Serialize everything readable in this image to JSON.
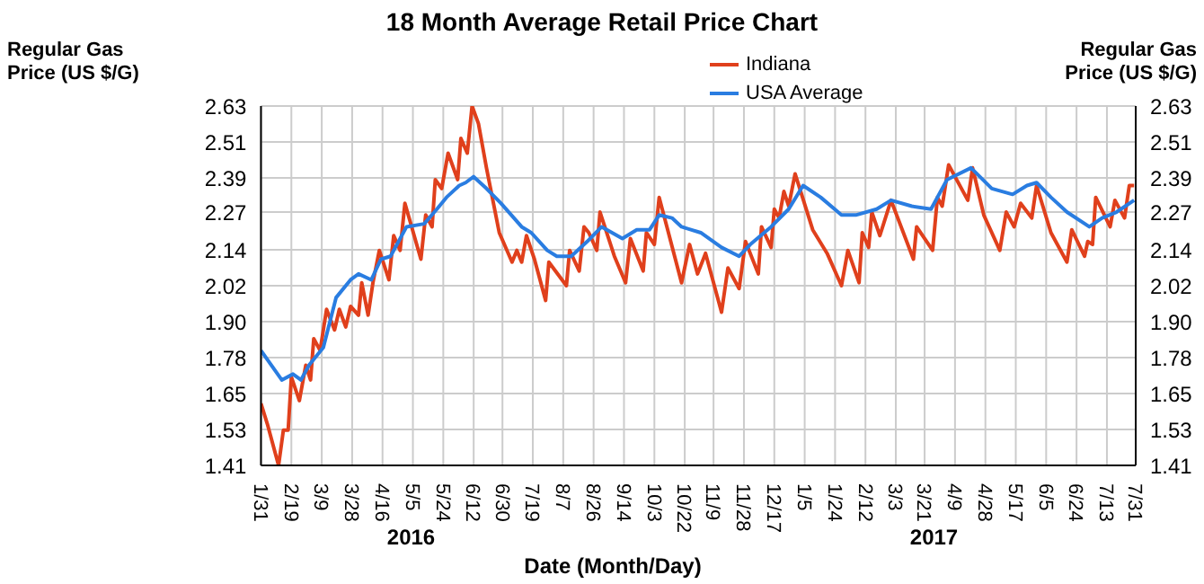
{
  "chart_data": {
    "type": "line",
    "title": "18 Month Average Retail Price Chart",
    "xlabel": "Date (Month/Day)",
    "ylabel": "Regular Gas Price (US $/G)",
    "y2label": "Regular Gas Price (US $/G)",
    "annotations": [
      "2016",
      "2017"
    ],
    "series": [
      {
        "name": "Indiana",
        "color": "#e0401c",
        "x": [
          "2016-01-31",
          "2016-02-04",
          "2016-02-11",
          "2016-02-14",
          "2016-02-17",
          "2016-02-19",
          "2016-02-24",
          "2016-02-28",
          "2016-03-02",
          "2016-03-04",
          "2016-03-08",
          "2016-03-12",
          "2016-03-17",
          "2016-03-20",
          "2016-03-24",
          "2016-03-27",
          "2016-04-01",
          "2016-04-03",
          "2016-04-07",
          "2016-04-10",
          "2016-04-14",
          "2016-04-20",
          "2016-04-23",
          "2016-04-27",
          "2016-04-30",
          "2016-05-10",
          "2016-05-13",
          "2016-05-17",
          "2016-05-19",
          "2016-05-23",
          "2016-05-27",
          "2016-06-02",
          "2016-06-04",
          "2016-06-08",
          "2016-06-11",
          "2016-06-15",
          "2016-06-20",
          "2016-06-28",
          "2016-07-06",
          "2016-07-09",
          "2016-07-12",
          "2016-07-15",
          "2016-07-20",
          "2016-07-27",
          "2016-07-29",
          "2016-08-09",
          "2016-08-11",
          "2016-08-17",
          "2016-08-20",
          "2016-08-23",
          "2016-08-28",
          "2016-08-30",
          "2016-09-08",
          "2016-09-15",
          "2016-09-18",
          "2016-09-26",
          "2016-09-28",
          "2016-10-03",
          "2016-10-06",
          "2016-10-20",
          "2016-10-25",
          "2016-10-30",
          "2016-11-04",
          "2016-11-14",
          "2016-11-18",
          "2016-11-25",
          "2016-11-29",
          "2016-12-07",
          "2016-12-09",
          "2016-12-15",
          "2016-12-17",
          "2016-12-20",
          "2016-12-23",
          "2016-12-26",
          "2016-12-30",
          "2017-01-10",
          "2017-01-19",
          "2017-01-28",
          "2017-02-01",
          "2017-02-08",
          "2017-02-10",
          "2017-02-14",
          "2017-02-16",
          "2017-02-21",
          "2017-02-28",
          "2017-03-14",
          "2017-03-16",
          "2017-03-26",
          "2017-03-29",
          "2017-04-01",
          "2017-04-05",
          "2017-04-17",
          "2017-04-20",
          "2017-04-27",
          "2017-05-07",
          "2017-05-11",
          "2017-05-16",
          "2017-05-20",
          "2017-05-27",
          "2017-05-30",
          "2017-06-08",
          "2017-06-18",
          "2017-06-21",
          "2017-06-29",
          "2017-07-01",
          "2017-07-04",
          "2017-07-06",
          "2017-07-15",
          "2017-07-18",
          "2017-07-24",
          "2017-07-27",
          "2017-07-30"
        ],
        "values": [
          1.62,
          1.55,
          1.41,
          1.53,
          1.53,
          1.71,
          1.63,
          1.75,
          1.7,
          1.84,
          1.8,
          1.94,
          1.87,
          1.94,
          1.88,
          1.95,
          1.92,
          2.03,
          1.92,
          2.03,
          2.14,
          2.04,
          2.19,
          2.14,
          2.3,
          2.11,
          2.26,
          2.22,
          2.38,
          2.35,
          2.47,
          2.38,
          2.52,
          2.47,
          2.63,
          2.57,
          2.42,
          2.2,
          2.1,
          2.14,
          2.1,
          2.19,
          2.11,
          1.97,
          2.1,
          2.02,
          2.14,
          2.07,
          2.22,
          2.2,
          2.14,
          2.27,
          2.12,
          2.03,
          2.18,
          2.07,
          2.2,
          2.16,
          2.32,
          2.03,
          2.16,
          2.06,
          2.13,
          1.93,
          2.08,
          2.01,
          2.17,
          2.06,
          2.22,
          2.15,
          2.28,
          2.25,
          2.34,
          2.29,
          2.4,
          2.21,
          2.13,
          2.02,
          2.14,
          2.03,
          2.2,
          2.15,
          2.27,
          2.19,
          2.31,
          2.11,
          2.22,
          2.14,
          2.32,
          2.29,
          2.43,
          2.31,
          2.42,
          2.26,
          2.14,
          2.27,
          2.22,
          2.3,
          2.25,
          2.36,
          2.2,
          2.1,
          2.21,
          2.12,
          2.17,
          2.16,
          2.32,
          2.22,
          2.31,
          2.25,
          2.36,
          2.36
        ]
      },
      {
        "name": "USA Average",
        "color": "#2a7de1",
        "x": [
          "2016-01-31",
          "2016-02-13",
          "2016-02-20",
          "2016-02-25",
          "2016-03-01",
          "2016-03-10",
          "2016-03-18",
          "2016-03-27",
          "2016-04-01",
          "2016-04-09",
          "2016-04-15",
          "2016-04-21",
          "2016-05-01",
          "2016-05-12",
          "2016-05-20",
          "2016-05-26",
          "2016-06-03",
          "2016-06-07",
          "2016-06-12",
          "2016-06-20",
          "2016-06-29",
          "2016-07-12",
          "2016-07-18",
          "2016-07-28",
          "2016-08-03",
          "2016-08-12",
          "2016-08-22",
          "2016-08-31",
          "2016-09-13",
          "2016-09-22",
          "2016-09-30",
          "2016-10-06",
          "2016-10-14",
          "2016-10-20",
          "2016-11-01",
          "2016-11-14",
          "2016-11-25",
          "2016-12-02",
          "2016-12-15",
          "2016-12-26",
          "2017-01-04",
          "2017-01-15",
          "2017-01-28",
          "2017-02-06",
          "2017-02-19",
          "2017-02-28",
          "2017-03-13",
          "2017-03-25",
          "2017-04-04",
          "2017-04-19",
          "2017-05-02",
          "2017-05-15",
          "2017-05-24",
          "2017-05-30",
          "2017-06-08",
          "2017-06-18",
          "2017-07-02",
          "2017-07-10",
          "2017-07-19",
          "2017-07-30"
        ],
        "values": [
          1.8,
          1.7,
          1.72,
          1.7,
          1.75,
          1.81,
          1.98,
          2.04,
          2.06,
          2.04,
          2.11,
          2.12,
          2.22,
          2.23,
          2.28,
          2.32,
          2.36,
          2.37,
          2.39,
          2.35,
          2.3,
          2.22,
          2.2,
          2.14,
          2.12,
          2.12,
          2.17,
          2.22,
          2.18,
          2.21,
          2.21,
          2.26,
          2.25,
          2.22,
          2.2,
          2.15,
          2.12,
          2.16,
          2.22,
          2.28,
          2.36,
          2.32,
          2.26,
          2.26,
          2.28,
          2.31,
          2.29,
          2.28,
          2.38,
          2.42,
          2.35,
          2.33,
          2.36,
          2.37,
          2.32,
          2.27,
          2.22,
          2.25,
          2.27,
          2.31
        ]
      }
    ],
    "xlim": [
      "2016-01-31",
      "2017-07-31"
    ],
    "xticks": [
      {
        "value": "2016-01-31",
        "label": "1/31"
      },
      {
        "value": "2016-02-19",
        "label": "2/19"
      },
      {
        "value": "2016-03-09",
        "label": "3/9"
      },
      {
        "value": "2016-03-28",
        "label": "3/28"
      },
      {
        "value": "2016-04-16",
        "label": "4/16"
      },
      {
        "value": "2016-05-05",
        "label": "5/5"
      },
      {
        "value": "2016-05-24",
        "label": "5/24"
      },
      {
        "value": "2016-06-12",
        "label": "6/12"
      },
      {
        "value": "2016-06-30",
        "label": "6/30"
      },
      {
        "value": "2016-07-19",
        "label": "7/19"
      },
      {
        "value": "2016-08-07",
        "label": "8/7"
      },
      {
        "value": "2016-08-26",
        "label": "8/26"
      },
      {
        "value": "2016-09-14",
        "label": "9/14"
      },
      {
        "value": "2016-10-03",
        "label": "10/3"
      },
      {
        "value": "2016-10-22",
        "label": "10/22"
      },
      {
        "value": "2016-11-09",
        "label": "11/9"
      },
      {
        "value": "2016-11-28",
        "label": "11/28"
      },
      {
        "value": "2016-12-17",
        "label": "12/17"
      },
      {
        "value": "2017-01-05",
        "label": "1/5"
      },
      {
        "value": "2017-01-24",
        "label": "1/24"
      },
      {
        "value": "2017-02-12",
        "label": "2/12"
      },
      {
        "value": "2017-03-03",
        "label": "3/3"
      },
      {
        "value": "2017-03-21",
        "label": "3/21"
      },
      {
        "value": "2017-04-09",
        "label": "4/9"
      },
      {
        "value": "2017-04-28",
        "label": "4/28"
      },
      {
        "value": "2017-05-17",
        "label": "5/17"
      },
      {
        "value": "2017-06-05",
        "label": "6/5"
      },
      {
        "value": "2017-06-24",
        "label": "6/24"
      },
      {
        "value": "2017-07-13",
        "label": "7/13"
      },
      {
        "value": "2017-07-31",
        "label": "7/31"
      }
    ],
    "ylim": [
      1.41,
      2.63
    ],
    "yticks": [
      {
        "value": 1.41,
        "label": "1.41"
      },
      {
        "value": 1.532,
        "label": "1.53"
      },
      {
        "value": 1.654,
        "label": "1.65"
      },
      {
        "value": 1.776,
        "label": "1.78"
      },
      {
        "value": 1.898,
        "label": "1.90"
      },
      {
        "value": 2.02,
        "label": "2.02"
      },
      {
        "value": 2.142,
        "label": "2.14"
      },
      {
        "value": 2.27,
        "label": "2.27"
      },
      {
        "value": 2.386,
        "label": "2.39"
      },
      {
        "value": 2.508,
        "label": "2.51"
      },
      {
        "value": 2.63,
        "label": "2.63"
      }
    ],
    "y2lim": [
      1.41,
      2.63
    ],
    "y2ticks": [
      {
        "value": 1.41,
        "label": "1.41"
      },
      {
        "value": 1.532,
        "label": "1.53"
      },
      {
        "value": 1.654,
        "label": "1.65"
      },
      {
        "value": 1.776,
        "label": "1.78"
      },
      {
        "value": 1.898,
        "label": "1.90"
      },
      {
        "value": 2.02,
        "label": "2.02"
      },
      {
        "value": 2.142,
        "label": "2.14"
      },
      {
        "value": 2.27,
        "label": "2.27"
      },
      {
        "value": 2.386,
        "label": "2.39"
      },
      {
        "value": 2.508,
        "label": "2.51"
      },
      {
        "value": 2.63,
        "label": "2.63"
      }
    ],
    "grid": true,
    "legend": "top",
    "marker": "none",
    "line_style": "solid"
  }
}
